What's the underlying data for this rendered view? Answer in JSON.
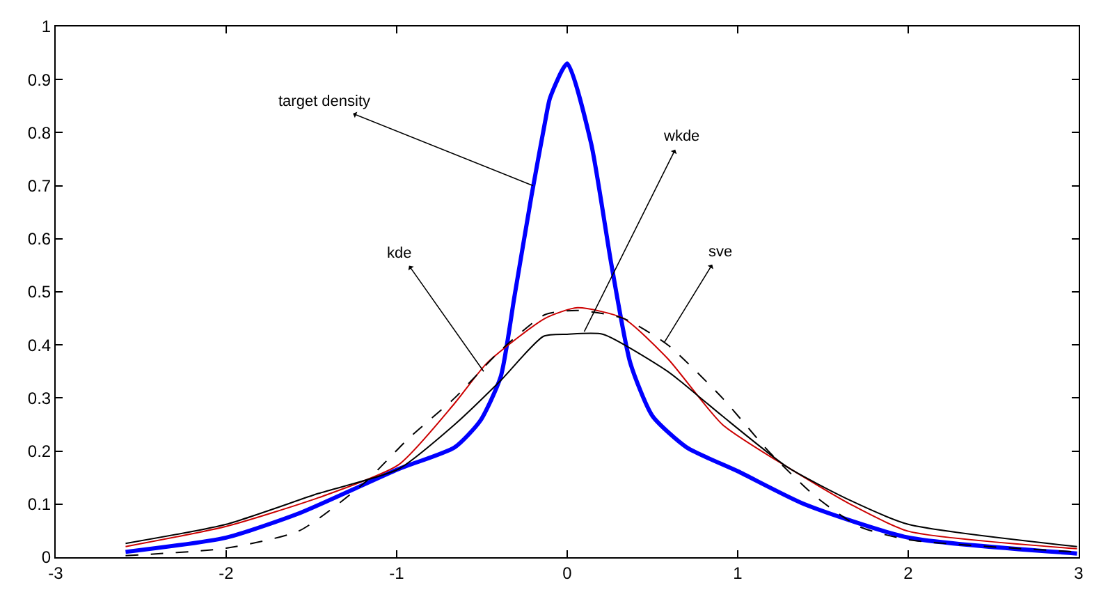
{
  "chart_data": {
    "type": "line",
    "xlim": [
      -3,
      3
    ],
    "xticks": [
      -3,
      -2,
      -1,
      0,
      1,
      2,
      3
    ],
    "ylim": [
      0,
      1
    ],
    "yticks": [
      0,
      0.1,
      0.2,
      0.3,
      0.4,
      0.5,
      0.6,
      0.7,
      0.8,
      0.9,
      1
    ],
    "series": [
      {
        "color": "#0000ff",
        "line_style": "solid",
        "x": [
          -2.59,
          -2.0,
          -1.57,
          -0.99,
          -0.66,
          -0.51,
          -0.39,
          -0.31,
          -0.21,
          -0.13,
          -0.1,
          0.0,
          0.14,
          0.26,
          0.37,
          0.5,
          0.7,
          1.0,
          1.39,
          2.0,
          2.99
        ],
        "values": [
          0.01,
          0.037,
          0.083,
          0.166,
          0.207,
          0.257,
          0.34,
          0.49,
          0.68,
          0.82,
          0.866,
          0.93,
          0.78,
          0.55,
          0.366,
          0.266,
          0.207,
          0.162,
          0.1,
          0.037,
          0.007
        ]
      },
      {
        "color": "#cc0000",
        "line_style": "solid",
        "x": [
          -2.59,
          -2.0,
          -1.46,
          -0.99,
          -0.66,
          -0.47,
          -0.13,
          0.06,
          0.33,
          0.59,
          0.91,
          1.29,
          1.66,
          2.0,
          2.99
        ],
        "values": [
          0.02,
          0.058,
          0.112,
          0.174,
          0.29,
          0.366,
          0.45,
          0.47,
          0.45,
          0.374,
          0.25,
          0.17,
          0.1,
          0.049,
          0.016
        ]
      },
      {
        "color": "#000000",
        "line_style": "solid",
        "x": [
          -2.59,
          -2.0,
          -1.46,
          -0.99,
          -0.66,
          -0.39,
          -0.14,
          0.0,
          0.21,
          0.59,
          0.67,
          0.91,
          1.29,
          1.66,
          2.0,
          2.99
        ],
        "values": [
          0.026,
          0.062,
          0.12,
          0.166,
          0.25,
          0.333,
          0.416,
          0.42,
          0.42,
          0.35,
          0.33,
          0.266,
          0.17,
          0.107,
          0.062,
          0.02
        ]
      },
      {
        "color": "#000000",
        "line_style": "dashed",
        "x": [
          -2.59,
          -2.0,
          -1.57,
          -1.19,
          -0.93,
          -0.66,
          -0.39,
          -0.13,
          0.06,
          0.33,
          0.59,
          0.91,
          1.18,
          1.45,
          1.71,
          2.0,
          2.99
        ],
        "values": [
          0.003,
          0.017,
          0.05,
          0.14,
          0.224,
          0.3,
          0.39,
          0.457,
          0.465,
          0.45,
          0.4,
          0.3,
          0.2,
          0.116,
          0.058,
          0.033,
          0.01
        ]
      }
    ],
    "annotations": [
      {
        "text": "target density",
        "x": -0.2,
        "y": 0.7
      },
      {
        "text": "kde",
        "x": -0.49,
        "y": 0.35
      },
      {
        "text": "wkde",
        "x": 0.1,
        "y": 0.425
      },
      {
        "text": "sve",
        "x": 0.57,
        "y": 0.405
      }
    ]
  }
}
